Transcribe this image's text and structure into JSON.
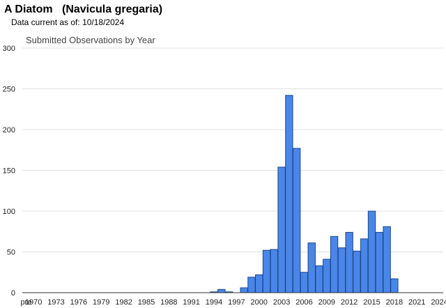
{
  "header": {
    "common_name": "A Diatom",
    "scientific_name": "(Navicula gregaria)",
    "data_current_label": "Data current as of:",
    "data_current_date": "10/18/2024"
  },
  "colors": {
    "bar_fill": "#4a86e8",
    "bar_stroke": "#1c4587",
    "grid": "#e0e0e0",
    "axis": "#333333"
  },
  "chart_data": {
    "type": "bar",
    "title": "Submitted Observations by Year",
    "xlabel": "",
    "ylabel": "",
    "ylim": [
      0,
      300
    ],
    "yticks": [
      0,
      50,
      100,
      150,
      200,
      250,
      300
    ],
    "grid": true,
    "legend": "none",
    "categories": [
      "pre",
      "1970",
      "1971",
      "1972",
      "1973",
      "1974",
      "1975",
      "1976",
      "1977",
      "1978",
      "1979",
      "1980",
      "1981",
      "1982",
      "1983",
      "1984",
      "1985",
      "1986",
      "1987",
      "1988",
      "1989",
      "1990",
      "1991",
      "1992",
      "1993",
      "1994",
      "1995",
      "1996",
      "1997",
      "1998",
      "1999",
      "2000",
      "2001",
      "2002",
      "2003",
      "2004",
      "2005",
      "2006",
      "2007",
      "2008",
      "2009",
      "2010",
      "2011",
      "2012",
      "2013",
      "2014",
      "2015",
      "2016",
      "2017",
      "2018",
      "2019",
      "2020",
      "2021",
      "2022",
      "2023",
      "2024"
    ],
    "values": [
      0,
      0,
      0,
      0,
      0,
      0,
      0,
      0,
      0,
      0,
      0,
      0,
      0,
      0,
      0,
      0,
      0,
      0,
      0,
      0,
      0,
      0,
      0,
      0,
      0,
      1,
      4,
      1,
      0,
      6,
      19,
      22,
      52,
      53,
      154,
      242,
      177,
      25,
      61,
      33,
      41,
      69,
      55,
      74,
      51,
      66,
      100,
      74,
      81,
      17,
      0,
      0,
      0,
      0,
      0,
      0
    ],
    "tick_labels": [
      "pre",
      "1970",
      "1973",
      "1976",
      "1979",
      "1982",
      "1985",
      "1988",
      "1991",
      "1994",
      "1997",
      "2000",
      "2003",
      "2006",
      "2009",
      "2012",
      "2015",
      "2018",
      "2021",
      "2024"
    ]
  }
}
